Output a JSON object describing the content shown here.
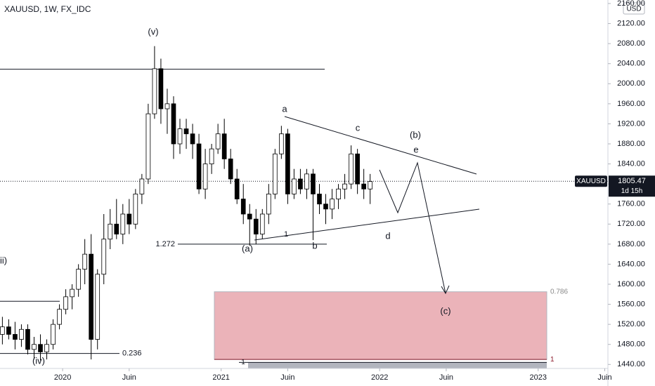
{
  "chart_data": {
    "type": "candlestick",
    "title": "XAUUSD, 1W, FX_IDC",
    "currency": "USD",
    "symbol_tag": "XAUUSD",
    "last_price": 1805.47,
    "countdown": "1d 15h",
    "up_color": "#ffffff",
    "down_color": "#000000",
    "x": [
      2019.62,
      2019.66,
      2019.7,
      2019.74,
      2019.78,
      2019.82,
      2019.86,
      2019.9,
      2019.94,
      2019.98,
      2020.02,
      2020.06,
      2020.1,
      2020.14,
      2020.18,
      2020.22,
      2020.26,
      2020.3,
      2020.34,
      2020.38,
      2020.42,
      2020.46,
      2020.5,
      2020.54,
      2020.58,
      2020.62,
      2020.66,
      2020.7,
      2020.74,
      2020.78,
      2020.82,
      2020.86,
      2020.9,
      2020.94,
      2020.98,
      2021.02,
      2021.06,
      2021.1,
      2021.14,
      2021.18,
      2021.22,
      2021.26,
      2021.3,
      2021.34,
      2021.38,
      2021.42,
      2021.46,
      2021.5,
      2021.54,
      2021.58,
      2021.62,
      2021.66,
      2021.7,
      2021.74,
      2021.78,
      2021.82,
      2021.86,
      2021.9,
      2021.94
    ],
    "open": [
      1500,
      1515,
      1500,
      1490,
      1510,
      1470,
      1480,
      1465,
      1480,
      1520,
      1550,
      1575,
      1590,
      1630,
      1660,
      1490,
      1620,
      1690,
      1720,
      1700,
      1740,
      1720,
      1780,
      1810,
      1940,
      2030,
      1950,
      1960,
      1880,
      1910,
      1900,
      1880,
      1790,
      1840,
      1870,
      1900,
      1850,
      1810,
      1770,
      1740,
      1730,
      1700,
      1740,
      1780,
      1860,
      1900,
      1780,
      1810,
      1790,
      1820,
      1780,
      1760,
      1750,
      1770,
      1790,
      1800,
      1860,
      1800,
      1790
    ],
    "high": [
      1535,
      1530,
      1525,
      1520,
      1520,
      1495,
      1500,
      1490,
      1530,
      1560,
      1590,
      1600,
      1640,
      1690,
      1700,
      1630,
      1740,
      1750,
      1770,
      1760,
      1770,
      1790,
      1820,
      1960,
      2075,
      2050,
      1990,
      1975,
      1930,
      1930,
      1920,
      1900,
      1870,
      1880,
      1920,
      1930,
      1870,
      1830,
      1800,
      1760,
      1750,
      1750,
      1800,
      1870,
      1916,
      1910,
      1830,
      1830,
      1830,
      1830,
      1800,
      1780,
      1790,
      1800,
      1820,
      1877,
      1870,
      1830,
      1820
    ],
    "low": [
      1480,
      1490,
      1470,
      1475,
      1460,
      1450,
      1448,
      1450,
      1470,
      1510,
      1540,
      1550,
      1575,
      1600,
      1450,
      1470,
      1600,
      1670,
      1690,
      1680,
      1700,
      1710,
      1760,
      1800,
      1930,
      1920,
      1900,
      1850,
      1860,
      1870,
      1850,
      1780,
      1770,
      1820,
      1860,
      1830,
      1800,
      1760,
      1720,
      1677,
      1680,
      1690,
      1720,
      1770,
      1850,
      1760,
      1770,
      1780,
      1770,
      1688,
      1740,
      1720,
      1730,
      1750,
      1770,
      1790,
      1780,
      1770,
      1760
    ],
    "close": [
      1515,
      1500,
      1490,
      1510,
      1470,
      1480,
      1465,
      1480,
      1520,
      1550,
      1575,
      1590,
      1630,
      1660,
      1490,
      1620,
      1690,
      1720,
      1700,
      1740,
      1720,
      1780,
      1810,
      1940,
      2030,
      1950,
      1960,
      1880,
      1910,
      1900,
      1880,
      1790,
      1840,
      1870,
      1900,
      1850,
      1810,
      1770,
      1740,
      1730,
      1700,
      1740,
      1780,
      1860,
      1900,
      1780,
      1810,
      1790,
      1820,
      1780,
      1760,
      1750,
      1770,
      1790,
      1800,
      1860,
      1800,
      1790,
      1805
    ],
    "xlim": [
      2019.605,
      2023.44
    ],
    "xticks": [
      2020,
      {
        "value": 2020.42,
        "label": "Juin"
      },
      2021,
      {
        "value": 2021.42,
        "label": "Juin"
      },
      2022,
      {
        "value": 2022.42,
        "label": "Juin"
      },
      2023,
      {
        "value": 2023.42,
        "label": "Juin"
      }
    ],
    "ylim": [
      1432,
      2167
    ],
    "yticks": [
      {
        "value": 1440,
        "label": "1440.00"
      },
      {
        "value": 1480,
        "label": "1480.00"
      },
      {
        "value": 1520,
        "label": "1520.00"
      },
      {
        "value": 1560,
        "label": "1560.00"
      },
      {
        "value": 1600,
        "label": "1600.00"
      },
      {
        "value": 1640,
        "label": "1640.00"
      },
      {
        "value": 1680,
        "label": "1680.00"
      },
      {
        "value": 1720,
        "label": "1720.00"
      },
      {
        "value": 1760,
        "label": "1760.00"
      },
      {
        "value": 1800,
        "label": "1800.00"
      },
      {
        "value": 1840,
        "label": "1840.00"
      },
      {
        "value": 1880,
        "label": "1880.00"
      },
      {
        "value": 1920,
        "label": "1920.00"
      },
      {
        "value": 1960,
        "label": "1960.00"
      },
      {
        "value": 2000,
        "label": "2000.00"
      },
      {
        "value": 2040,
        "label": "2040.00"
      },
      {
        "value": 2080,
        "label": "2080.00"
      },
      {
        "value": 2120,
        "label": "2120.00"
      },
      {
        "value": 2160,
        "label": "2160.00"
      }
    ],
    "levels": [
      {
        "price": 2029
      },
      {
        "price": 1566
      },
      {
        "price": 1680,
        "label": "1.272"
      },
      {
        "price": 1462,
        "label": "0.236"
      }
    ],
    "zone": {
      "top": 1585,
      "bottom": 1450,
      "top_label": "0.786",
      "bottom_label": "1",
      "color": "#e8a6ad"
    },
    "gray_zone": {
      "top": 1444,
      "label": "1",
      "color": "#b2b5be"
    },
    "wave_labels": [
      "(v)",
      "(iv)",
      "ii)",
      "(a)",
      "a",
      "b",
      "c",
      "d",
      "e",
      "(b)",
      "(c)",
      "1"
    ]
  }
}
